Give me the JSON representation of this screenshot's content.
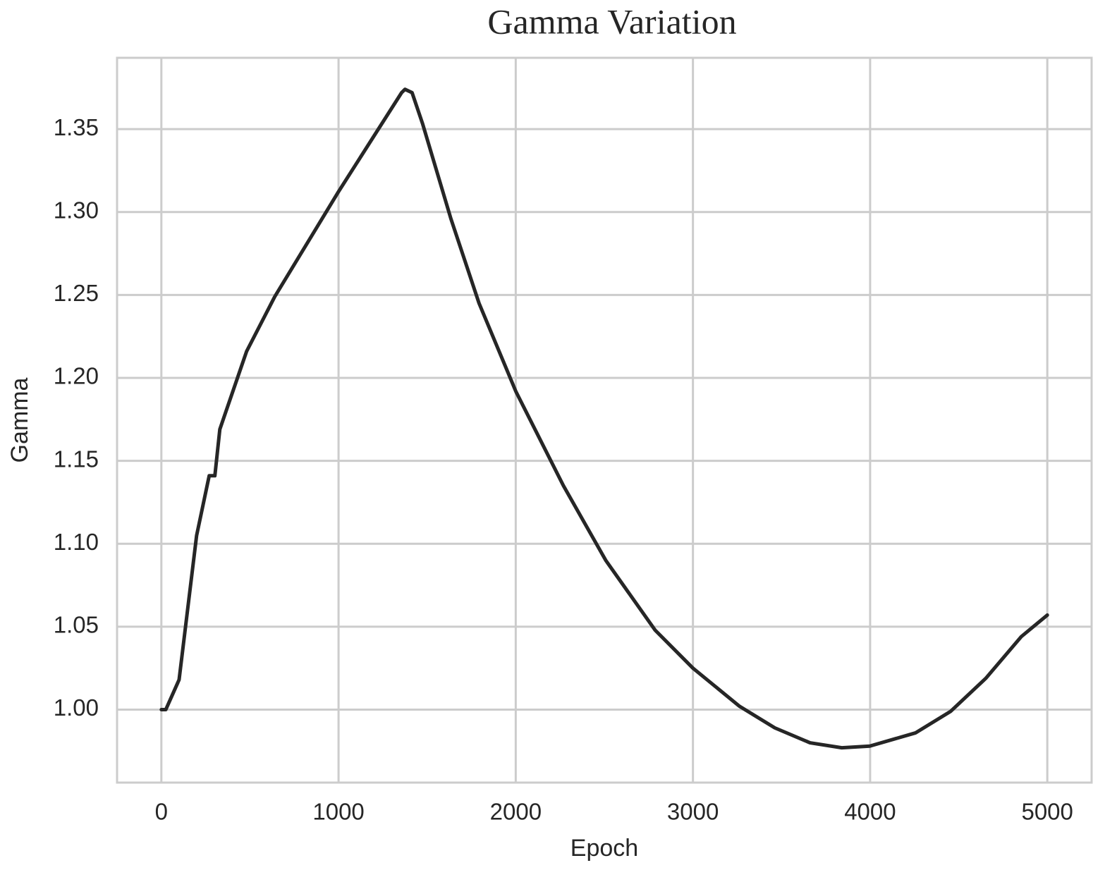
{
  "chart_data": {
    "type": "line",
    "title": "Gamma Variation",
    "x_label": "Epoch",
    "y_label": "Gamma",
    "x": [
      0,
      25,
      100,
      199,
      270,
      302,
      330,
      362,
      481,
      640,
      998,
      1356,
      1375,
      1415,
      1475,
      1634,
      1793,
      2000,
      2269,
      2508,
      2786,
      3000,
      3263,
      3462,
      3661,
      3840,
      3998,
      4257,
      4455,
      4654,
      4853,
      5000
    ],
    "series": [
      {
        "name": "Gamma",
        "color": "#262626",
        "values": [
          1.0,
          1.0,
          1.018,
          1.105,
          1.141,
          1.141,
          1.169,
          1.179,
          1.216,
          1.249,
          1.312,
          1.372,
          1.374,
          1.372,
          1.353,
          1.296,
          1.245,
          1.192,
          1.135,
          1.09,
          1.048,
          1.025,
          1.002,
          0.989,
          0.98,
          0.977,
          0.978,
          0.986,
          0.999,
          1.019,
          1.044,
          1.057
        ]
      }
    ],
    "xlim": [
      -250,
      5250
    ],
    "ylim": [
      0.956,
      1.393
    ],
    "xticks": [
      0,
      1000,
      2000,
      3000,
      4000,
      5000
    ],
    "yticks": [
      {
        "value": 1.0,
        "label": "1.00"
      },
      1.05,
      {
        "value": 1.1,
        "label": "1.10"
      },
      1.15,
      {
        "value": 1.2,
        "label": "1.20"
      },
      1.25,
      {
        "value": 1.3,
        "label": "1.30"
      },
      1.35
    ],
    "grid": true
  }
}
